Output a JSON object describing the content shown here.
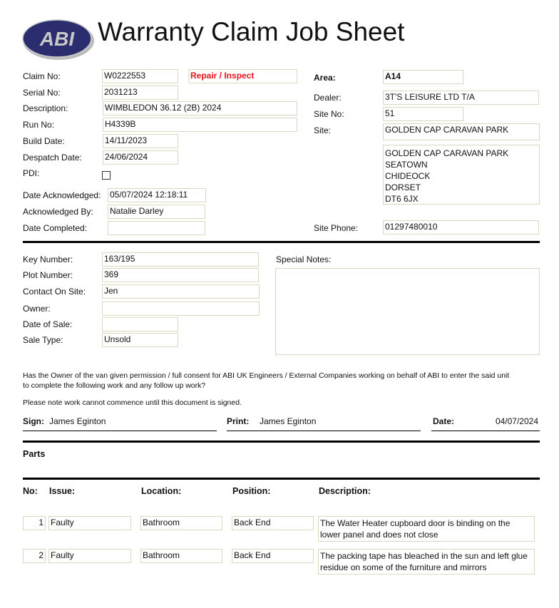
{
  "header": {
    "logo_text": "ABI",
    "title": "Warranty Claim Job Sheet",
    "brand_color": "#2b2d6e"
  },
  "claim": {
    "claim_no_label": "Claim No:",
    "claim_no": "W0222553",
    "claim_type": "Repair / Inspect",
    "serial_label": "Serial No:",
    "serial": "2031213",
    "description_label": "Description:",
    "description": "WIMBLEDON 36.12 (2B) 2024",
    "run_label": "Run No:",
    "run": "H4339B",
    "build_label": "Build Date:",
    "build": "14/11/2023",
    "despatch_label": "Despatch Date:",
    "despatch": "24/06/2024",
    "pdi_label": "PDI:",
    "pdi_checked": false,
    "ack_date_label": "Date Acknowledged:",
    "ack_date": "05/07/2024 12:18:11",
    "ack_by_label": "Acknowledged By:",
    "ack_by": "Natalie Darley",
    "completed_label": "Date Completed:",
    "completed": ""
  },
  "site": {
    "area_label": "Area:",
    "area": "A14",
    "dealer_label": "Dealer:",
    "dealer": "3T'S LEISURE LTD T/A",
    "site_no_label": "Site No:",
    "site_no": "51",
    "site_label": "Site:",
    "site": "GOLDEN CAP CARAVAN PARK",
    "address": [
      "GOLDEN CAP CARAVAN PARK",
      "SEATOWN",
      "CHIDEOCK",
      "DORSET",
      "DT6 6JX"
    ],
    "phone_label": "Site Phone:",
    "phone": "01297480010"
  },
  "unit": {
    "key_label": "Key Number:",
    "key": "163/195",
    "plot_label": "Plot Number:",
    "plot": "369",
    "contact_label": "Contact On Site:",
    "contact": "Jen",
    "owner_label": "Owner:",
    "owner": "",
    "sale_date_label": "Date of Sale:",
    "sale_date": "",
    "sale_type_label": "Sale Type:",
    "sale_type": "Unsold",
    "notes_label": "Special Notes:",
    "notes": ""
  },
  "consent": {
    "line1": "Has the Owner of the van given permission / full consent for ABI UK Engineers / External Companies working on behalf of ABI to enter the said unit",
    "line2": "to complete the following work and any follow up work?",
    "note": "Please note work cannot commence until this document is signed.",
    "sign_label": "Sign:",
    "sign": "James Eginton",
    "print_label": "Print:",
    "print": "James Eginton",
    "date_label": "Date:",
    "date": "04/07/2024"
  },
  "parts": {
    "title": "Parts"
  },
  "issues": {
    "headers": {
      "no": "No:",
      "issue": "Issue:",
      "location": "Location:",
      "position": "Position:",
      "description": "Description:"
    },
    "rows": [
      {
        "no": "1",
        "issue": "Faulty",
        "location": "Bathroom",
        "position": "Back End",
        "description": "The Water Heater cupboard door is binding on the lower panel and does not close"
      },
      {
        "no": "2",
        "issue": "Faulty",
        "location": "Bathroom",
        "position": "Back End",
        "description": "The packing tape has bleached in the sun and left glue residue on some of the furniture and mirrors"
      }
    ]
  }
}
